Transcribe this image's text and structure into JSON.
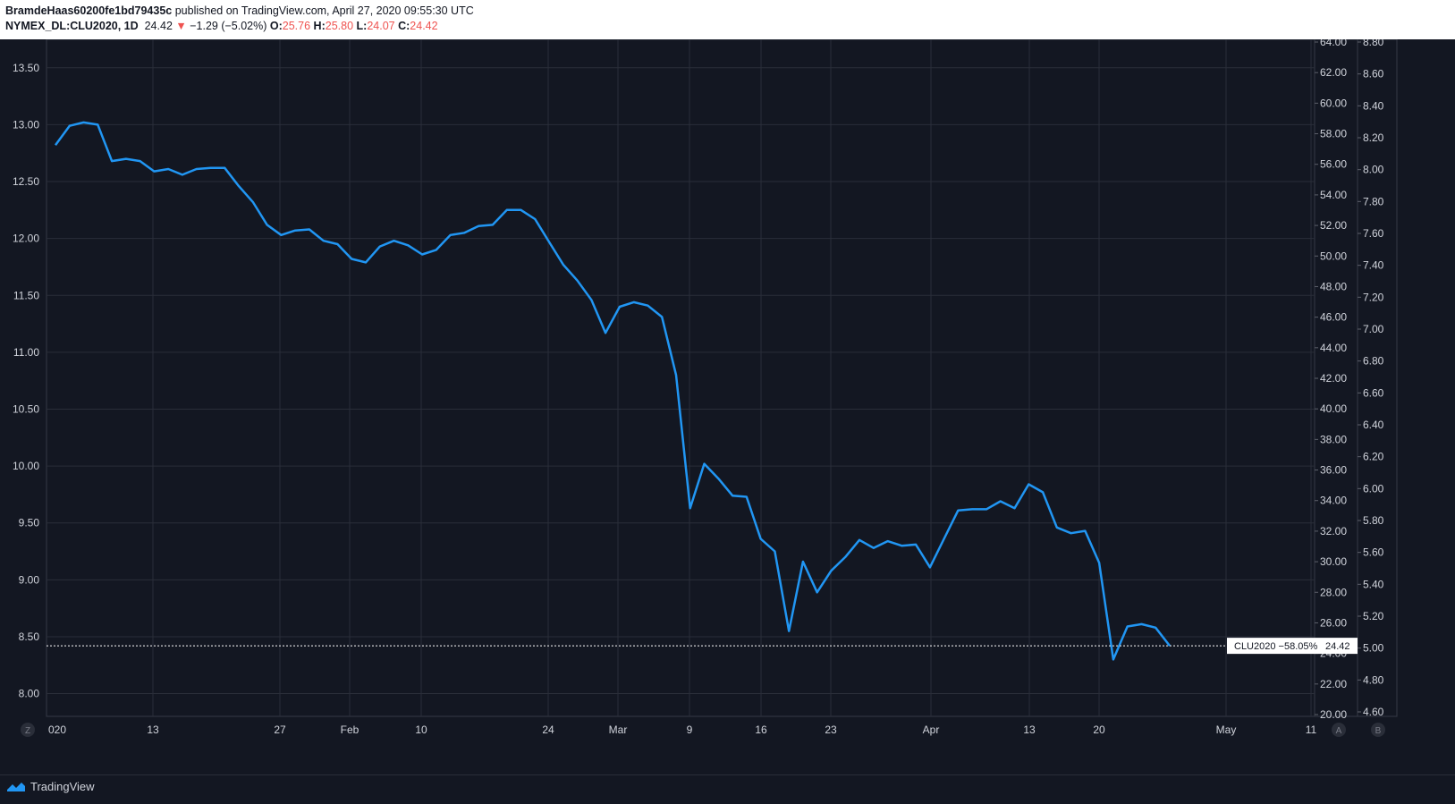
{
  "header": {
    "publisher": "BramdeHaas60200fe1bd79435c",
    "published_text": "published on TradingView.com, April 27, 2020 09:55:30 UTC",
    "symbol": "NYMEX_DL:CLU2020, 1D",
    "last": "24.42",
    "change": "−1.29 (−5.02%)",
    "o_label": "O:",
    "o_val": "25.76",
    "h_label": "H:",
    "h_val": "25.80",
    "l_label": "L:",
    "l_val": "24.07",
    "c_label": "C:",
    "c_val": "24.42"
  },
  "colors": {
    "background": "#131722",
    "line": "#2196f3",
    "grid": "#2a2e39",
    "down": "#ef5350"
  },
  "footer": {
    "brand": "TradingView",
    "z_button": "Z",
    "a_button": "A",
    "b_button": "B"
  },
  "price_tag": {
    "label": "CLU2020 −58.05%",
    "value": "24.42"
  },
  "chart_data": {
    "type": "line",
    "x_tick_labels": [
      "020",
      "13",
      "27",
      "Feb",
      "10",
      "24",
      "Mar",
      "9",
      "16",
      "23",
      "Apr",
      "13",
      "20",
      "May",
      "11"
    ],
    "left_axis": {
      "ticks": [
        "8.00",
        "8.50",
        "9.00",
        "9.50",
        "10.00",
        "10.50",
        "11.00",
        "11.50",
        "12.00",
        "12.50",
        "13.00",
        "13.50"
      ],
      "range": [
        7.8,
        13.75
      ]
    },
    "right_axis_1": {
      "ticks": [
        "20.00",
        "22.00",
        "24.00",
        "26.00",
        "28.00",
        "30.00",
        "32.00",
        "34.00",
        "36.00",
        "38.00",
        "40.00",
        "42.00",
        "44.00",
        "46.00",
        "48.00",
        "50.00",
        "52.00",
        "54.00",
        "56.00",
        "58.00",
        "60.00",
        "62.00",
        "64.00"
      ]
    },
    "right_axis_2": {
      "ticks": [
        "4.60",
        "4.80",
        "5.00",
        "5.20",
        "5.40",
        "5.60",
        "5.80",
        "6.00",
        "6.20",
        "6.40",
        "6.60",
        "6.80",
        "7.00",
        "7.20",
        "7.40",
        "7.60",
        "7.80",
        "8.00",
        "8.20",
        "8.40",
        "8.60",
        "8.80"
      ]
    },
    "series": [
      {
        "values": [
          12.82,
          12.99,
          13.02,
          13.0,
          12.68,
          12.7,
          12.68,
          12.59,
          12.61,
          12.56,
          12.61,
          12.62,
          12.62,
          12.46,
          12.32,
          12.12,
          12.03,
          12.07,
          12.08,
          11.98,
          11.95,
          11.82,
          11.79,
          11.93,
          11.98,
          11.94,
          11.86,
          11.9,
          12.03,
          12.05,
          12.11,
          12.12,
          12.25,
          12.25,
          12.17,
          11.97,
          11.77,
          11.63,
          11.46,
          11.17,
          11.4,
          11.44,
          11.41,
          11.31,
          10.8,
          9.63,
          10.02,
          9.89,
          9.74,
          9.73,
          9.36,
          9.25,
          8.55,
          9.16,
          8.89,
          9.08,
          9.2,
          9.35,
          9.28,
          9.34,
          9.3,
          9.31,
          9.11,
          9.36,
          9.61,
          9.62,
          9.62,
          9.69,
          9.63,
          9.84,
          9.77,
          9.46,
          9.41,
          9.43,
          9.15,
          8.3,
          8.59,
          8.61,
          8.58,
          8.42
        ]
      }
    ],
    "last_value": 8.42
  }
}
